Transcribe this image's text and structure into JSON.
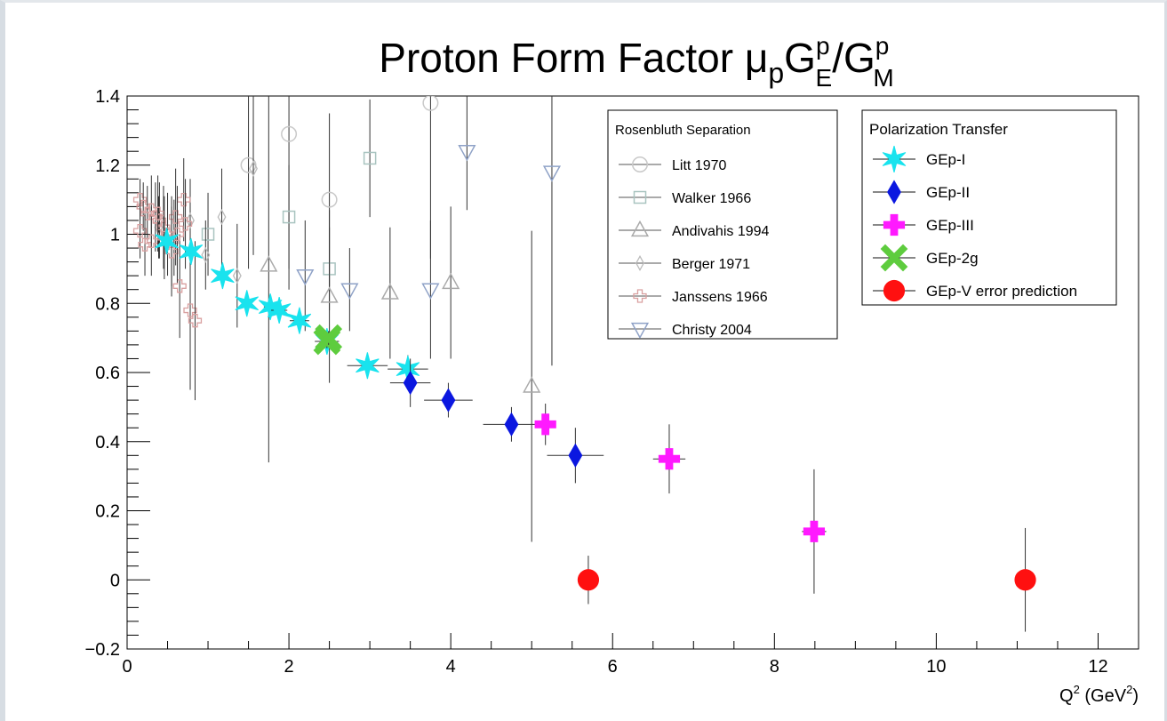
{
  "chart_data": {
    "type": "scatter",
    "title_main": "Proton Form Factor ",
    "title_mu": "μ",
    "title_p": "p",
    "title_G1": "G",
    "title_sup1": "p",
    "title_sub1": "E",
    "title_slash": "/",
    "title_G2": "G",
    "title_sup2": "p",
    "title_sub2": "M",
    "xlabel_main": "Q",
    "xlabel_sup": "2",
    "xlabel_unit": " (GeV",
    "xlabel_unit_sup": "2",
    "xlabel_close": ")",
    "xlim": [
      0,
      12.5
    ],
    "ylim": [
      -0.2,
      1.4
    ],
    "xticks": [
      0,
      2,
      4,
      6,
      8,
      10,
      12
    ],
    "xtick_labels": [
      "0",
      "2",
      "4",
      "6",
      "8",
      "10",
      "12"
    ],
    "yticks": [
      -0.2,
      0,
      0.2,
      0.4,
      0.6,
      0.8,
      1,
      1.2,
      1.4
    ],
    "ytick_labels": [
      "−0.2",
      "0",
      "0.2",
      "0.4",
      "0.6",
      "0.8",
      "1",
      "1.2",
      "1.4"
    ],
    "grid": false,
    "legends": [
      {
        "title": "Rosenbluth Separation",
        "placement": "top-center",
        "entries": [
          "Litt 1970",
          "Walker 1966",
          "Andivahis 1994",
          "Berger 1971",
          "Janssens 1966",
          "Christy 2004"
        ]
      },
      {
        "title": "Polarization Transfer",
        "placement": "top-right",
        "entries": [
          "GEp-I",
          "GEp-II",
          "GEp-III",
          "GEp-2g",
          "GEp-V error prediction"
        ]
      }
    ],
    "series": [
      {
        "name": "Litt 1970",
        "marker": "circle-open",
        "color": "#c9c9c9",
        "x": [
          1.5,
          2.0,
          2.5,
          3.75
        ],
        "y": [
          1.2,
          1.29,
          1.1,
          1.38
        ],
        "err": [
          0.3,
          0.45,
          0.25,
          0.45
        ]
      },
      {
        "name": "Walker 1966",
        "marker": "square-open",
        "color": "#a9c4c0",
        "x": [
          1.0,
          2.0,
          2.5,
          3.0
        ],
        "y": [
          1.0,
          1.05,
          0.9,
          1.22
        ],
        "err": [
          0.12,
          0.15,
          0.12,
          0.17
        ]
      },
      {
        "name": "Andivahis 1994",
        "marker": "triangle-open",
        "color": "#aaaaaa",
        "x": [
          1.75,
          2.5,
          3.25,
          4.0,
          5.0
        ],
        "y": [
          0.91,
          0.82,
          0.83,
          0.86,
          0.56
        ],
        "err": [
          0.57,
          0.25,
          0.19,
          0.22,
          0.45
        ]
      },
      {
        "name": "Berger 1971",
        "marker": "diamond-open",
        "color": "#bbbbbb",
        "x": [
          0.39,
          0.58,
          0.78,
          0.97,
          1.17,
          1.36,
          1.56
        ],
        "y": [
          1.02,
          0.99,
          1.04,
          0.94,
          1.05,
          0.88,
          1.19
        ],
        "err": [
          0.09,
          0.11,
          0.12,
          0.1,
          0.14,
          0.15,
          0.25
        ]
      },
      {
        "name": "Janssens 1966",
        "marker": "cross-open",
        "color": "#d9a0a0",
        "x": [
          0.16,
          0.2,
          0.25,
          0.3,
          0.35,
          0.4,
          0.45,
          0.5,
          0.55,
          0.6,
          0.65,
          0.7,
          0.72,
          0.78,
          0.84,
          0.16,
          0.22,
          0.3,
          0.38,
          0.46,
          0.55,
          0.62
        ],
        "y": [
          1.1,
          1.08,
          1.06,
          1.07,
          1.05,
          1.04,
          1.02,
          1.0,
          0.98,
          1.05,
          0.85,
          1.1,
          1.03,
          0.78,
          0.75,
          1.01,
          0.97,
          0.98,
          1.06,
          0.99,
          0.95,
          1.0
        ],
        "err": [
          0.06,
          0.07,
          0.08,
          0.1,
          0.1,
          0.11,
          0.12,
          0.12,
          0.13,
          0.14,
          0.15,
          0.12,
          0.13,
          0.23,
          0.23,
          0.08,
          0.09,
          0.1,
          0.11,
          0.12,
          0.13,
          0.14
        ]
      },
      {
        "name": "Christy 2004",
        "marker": "triangle-down-open",
        "color": "#8fa2c7",
        "x": [
          2.2,
          2.75,
          3.75,
          4.2,
          5.25
        ],
        "y": [
          0.88,
          0.84,
          0.84,
          1.24,
          1.18
        ],
        "err": [
          0.16,
          0.12,
          0.2,
          0.17,
          0.56
        ]
      },
      {
        "name": "GEp-I",
        "marker": "star",
        "color": "#19e3ee",
        "x": [
          0.49,
          0.79,
          1.18,
          1.48,
          1.77,
          1.88,
          2.13,
          2.47,
          2.97,
          3.47
        ],
        "y": [
          0.98,
          0.95,
          0.88,
          0.8,
          0.79,
          0.78,
          0.75,
          0.69,
          0.62,
          0.61
        ],
        "err": [
          0.03,
          0.03,
          0.02,
          0.03,
          0.02,
          0.02,
          0.03,
          0.03,
          0.03,
          0.04
        ],
        "xerr": [
          0.02,
          0.03,
          0.04,
          0.05,
          0.08,
          0.1,
          0.12,
          0.15,
          0.25,
          0.25
        ]
      },
      {
        "name": "GEp-II",
        "marker": "diamond",
        "color": "#0b17e0",
        "x": [
          3.5,
          3.97,
          4.75,
          5.54
        ],
        "y": [
          0.57,
          0.52,
          0.45,
          0.36
        ],
        "err": [
          0.07,
          0.05,
          0.05,
          0.08
        ],
        "xerr": [
          0.25,
          0.3,
          0.35,
          0.35
        ]
      },
      {
        "name": "GEp-III",
        "marker": "cross",
        "color": "#ff19ff",
        "x": [
          5.17,
          6.7,
          8.49
        ],
        "y": [
          0.45,
          0.35,
          0.14
        ],
        "err": [
          0.06,
          0.1,
          0.18
        ],
        "xerr": [
          0.13,
          0.2,
          0.15
        ]
      },
      {
        "name": "GEp-2g",
        "marker": "x-thick",
        "color": "#5ecc3e",
        "x": [
          2.47,
          2.49
        ],
        "y": [
          0.69,
          0.7
        ],
        "err": [
          0.02,
          0.02
        ],
        "xerr": [
          0.05,
          0.05
        ]
      },
      {
        "name": "GEp-V error prediction",
        "marker": "circle",
        "color": "#ff1010",
        "x": [
          5.7,
          11.1
        ],
        "y": [
          0.0,
          0.0
        ],
        "err": [
          0.07,
          0.15
        ]
      }
    ]
  }
}
